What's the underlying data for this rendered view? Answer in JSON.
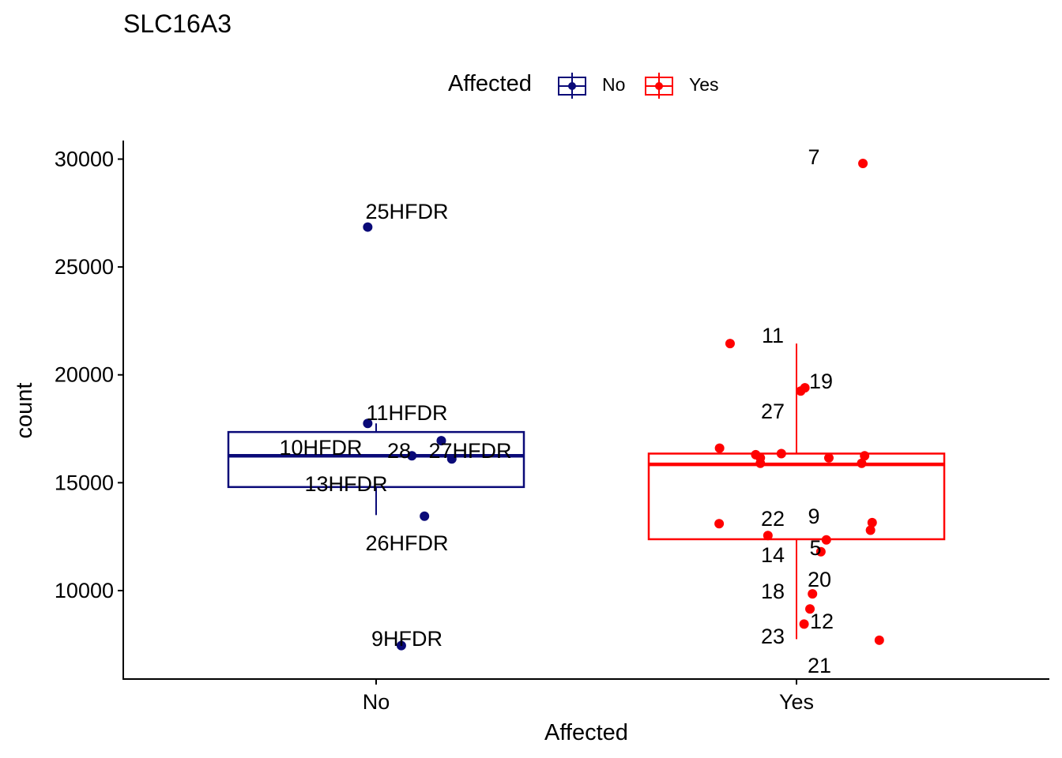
{
  "chart_data": {
    "type": "boxplot",
    "title": "SLC16A3",
    "xlabel": "Affected",
    "ylabel": "count",
    "ylim": [
      5900,
      30860
    ],
    "y_ticks": [
      10000,
      15000,
      20000,
      25000,
      30000
    ],
    "y_tick_labels": [
      "10000",
      "15000",
      "20000",
      "25000",
      "30000"
    ],
    "categories": [
      "No",
      "Yes"
    ],
    "legend": {
      "title": "Affected",
      "position": "top",
      "entries": [
        {
          "label": "No",
          "color": "#0A0A78"
        },
        {
          "label": "Yes",
          "color": "#FF0000"
        }
      ]
    },
    "groups": [
      {
        "name": "No",
        "color": "#0A0A78",
        "box": {
          "whisker_low": 13500,
          "q1": 14800,
          "median": 16250,
          "q3": 17350,
          "whisker_high": 17750
        },
        "points": [
          {
            "label": "25HFDR",
            "x_jitter": -0.02,
            "y": 26850
          },
          {
            "label": "11HFDR",
            "x_jitter": -0.02,
            "y": 17750
          },
          {
            "label": "10HFDR",
            "x_jitter": 0.155,
            "y": 16950
          },
          {
            "label": "28",
            "x_jitter": 0.085,
            "y": 16250
          },
          {
            "label": "27HFDR",
            "x_jitter": 0.18,
            "y": 16100
          },
          {
            "label": "13HFDR",
            "x_jitter": 0.18,
            "y": 16100,
            "hidden_point": true
          },
          {
            "label": "26HFDR",
            "x_jitter": 0.115,
            "y": 13450
          },
          {
            "label": "9HFDR",
            "x_jitter": 0.06,
            "y": 7450
          }
        ]
      },
      {
        "name": "Yes",
        "color": "#FF0000",
        "box": {
          "whisker_low": 7750,
          "q1": 12380,
          "median": 15850,
          "q3": 16350,
          "whisker_high": 21450
        },
        "points": [
          {
            "label": "7",
            "x_jitter": 0.158,
            "y": 29800
          },
          {
            "label": "11",
            "x_jitter": -0.158,
            "y": 21450
          },
          {
            "label": "19",
            "x_jitter": 0.02,
            "y": 19400
          },
          {
            "label": "27",
            "x_jitter": 0.01,
            "y": 19250
          },
          {
            "label": "",
            "x_jitter": -0.183,
            "y": 16600
          },
          {
            "label": "",
            "x_jitter": -0.097,
            "y": 16300
          },
          {
            "label": "",
            "x_jitter": -0.086,
            "y": 16150
          },
          {
            "label": "",
            "x_jitter": -0.086,
            "y": 15900
          },
          {
            "label": "",
            "x_jitter": -0.036,
            "y": 16350
          },
          {
            "label": "",
            "x_jitter": 0.077,
            "y": 16150
          },
          {
            "label": "",
            "x_jitter": 0.162,
            "y": 16250
          },
          {
            "label": "",
            "x_jitter": 0.155,
            "y": 15900
          },
          {
            "label": "22",
            "x_jitter": -0.184,
            "y": 13100
          },
          {
            "label": "9",
            "x_jitter": 0.18,
            "y": 13150
          },
          {
            "label": "",
            "x_jitter": 0.176,
            "y": 12800
          },
          {
            "label": "14",
            "x_jitter": -0.068,
            "y": 12550
          },
          {
            "label": "5",
            "x_jitter": 0.071,
            "y": 12350
          },
          {
            "label": "20",
            "x_jitter": 0.058,
            "y": 11800
          },
          {
            "label": "18",
            "x_jitter": 0.038,
            "y": 9850
          },
          {
            "label": "12",
            "x_jitter": 0.032,
            "y": 9150
          },
          {
            "label": "23",
            "x_jitter": 0.018,
            "y": 8450
          },
          {
            "label": "21",
            "x_jitter": 0.197,
            "y": 7700
          }
        ]
      }
    ]
  }
}
